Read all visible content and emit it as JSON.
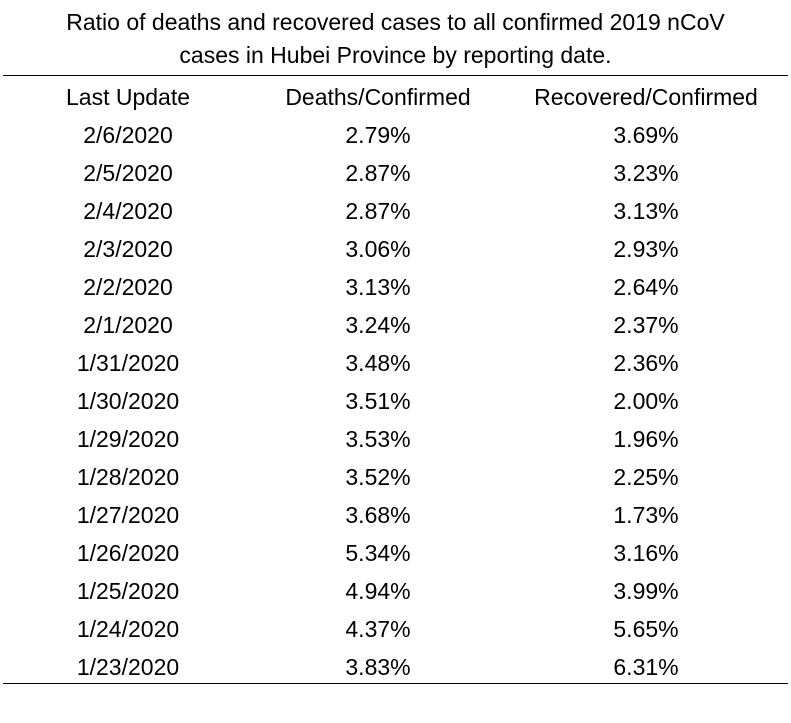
{
  "title": {
    "line1": "Ratio of deaths and recovered cases to all confirmed 2019 nCoV",
    "line2": "cases in Hubei Province by reporting date."
  },
  "table": {
    "columns": [
      "Last Update",
      "Deaths/Confirmed",
      "Recovered/Confirmed"
    ],
    "rows": [
      [
        "2/6/2020",
        "2.79%",
        "3.69%"
      ],
      [
        "2/5/2020",
        "2.87%",
        "3.23%"
      ],
      [
        "2/4/2020",
        "2.87%",
        "3.13%"
      ],
      [
        "2/3/2020",
        "3.06%",
        "2.93%"
      ],
      [
        "2/2/2020",
        "3.13%",
        "2.64%"
      ],
      [
        "2/1/2020",
        "3.24%",
        "2.37%"
      ],
      [
        "1/31/2020",
        "3.48%",
        "2.36%"
      ],
      [
        "1/30/2020",
        "3.51%",
        "2.00%"
      ],
      [
        "1/29/2020",
        "3.53%",
        "1.96%"
      ],
      [
        "1/28/2020",
        "3.52%",
        "2.25%"
      ],
      [
        "1/27/2020",
        "3.68%",
        "1.73%"
      ],
      [
        "1/26/2020",
        "5.34%",
        "3.16%"
      ],
      [
        "1/25/2020",
        "4.94%",
        "3.99%"
      ],
      [
        "1/24/2020",
        "4.37%",
        "5.65%"
      ],
      [
        "1/23/2020",
        "3.83%",
        "6.31%"
      ]
    ]
  }
}
